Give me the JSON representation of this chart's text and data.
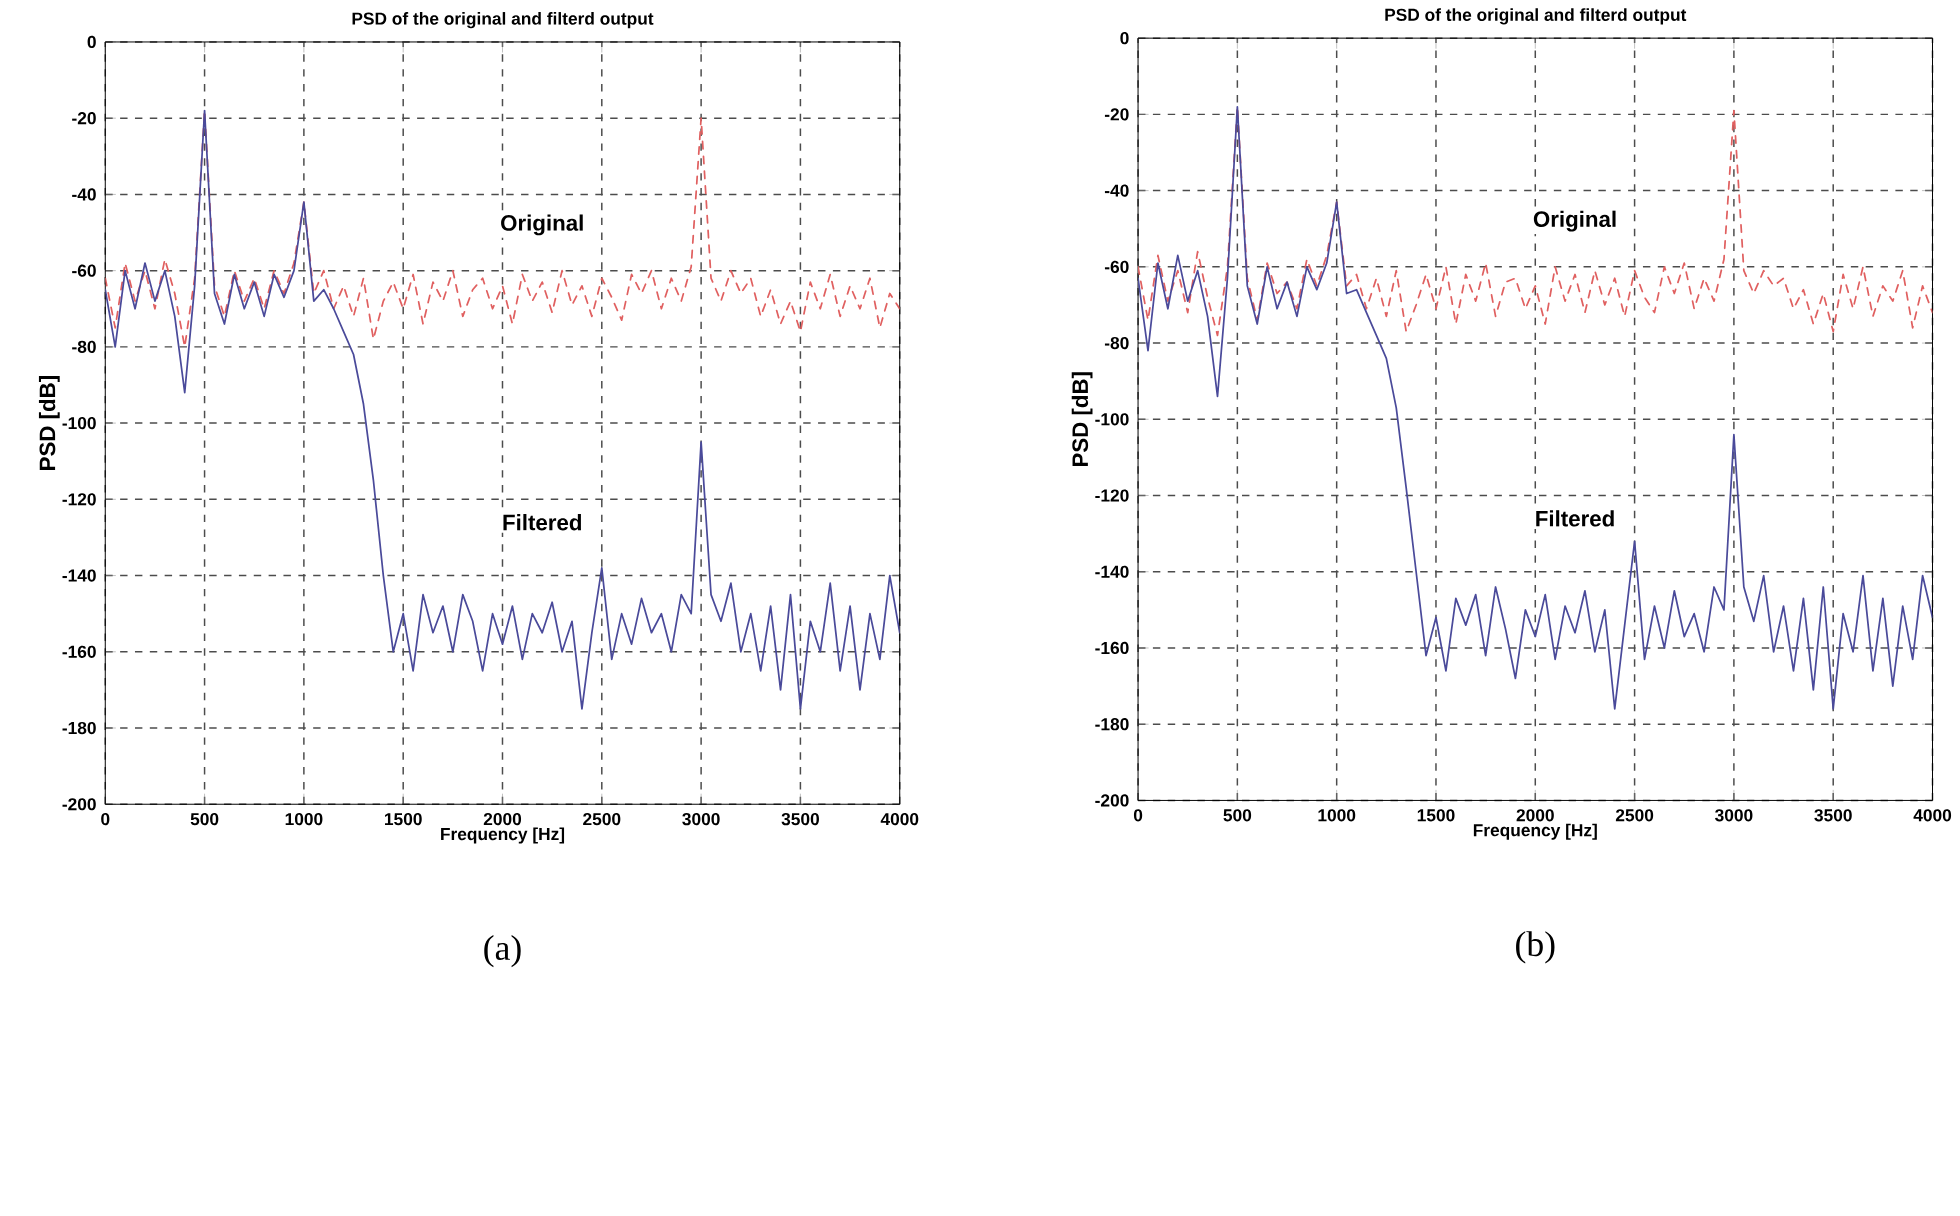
{
  "chart_data": [
    {
      "type": "line",
      "title": "PSD of the original and  filterd output",
      "xlabel": "Frequency [Hz]",
      "ylabel": "PSD [dB]",
      "annotations": [
        "(a)"
      ],
      "grid": true,
      "legend": false,
      "xlim": [
        0,
        4000
      ],
      "ylim": [
        -200,
        0
      ],
      "xticks": [
        0,
        500,
        1000,
        1500,
        2000,
        2500,
        3000,
        3500,
        4000
      ],
      "yticks": [
        0,
        -20,
        -40,
        -60,
        -80,
        -100,
        -120,
        -140,
        -160,
        -180,
        -200
      ],
      "x": [
        0,
        50,
        100,
        150,
        200,
        250,
        300,
        350,
        400,
        450,
        500,
        550,
        600,
        650,
        700,
        750,
        800,
        850,
        900,
        950,
        1000,
        1050,
        1100,
        1150,
        1200,
        1250,
        1300,
        1350,
        1400,
        1450,
        1500,
        1550,
        1600,
        1650,
        1700,
        1750,
        1800,
        1850,
        1900,
        1950,
        2000,
        2050,
        2100,
        2150,
        2200,
        2250,
        2300,
        2350,
        2400,
        2450,
        2500,
        2550,
        2600,
        2650,
        2700,
        2750,
        2800,
        2850,
        2900,
        2950,
        3000,
        3050,
        3100,
        3150,
        3200,
        3250,
        3300,
        3350,
        3400,
        3450,
        3500,
        3550,
        3600,
        3650,
        3700,
        3750,
        3800,
        3850,
        3900,
        3950,
        4000
      ],
      "series": [
        {
          "name": "Original",
          "color": "#e06060",
          "line_style": "dashed",
          "values": [
            -62,
            -75,
            -58,
            -68,
            -60,
            -70,
            -57,
            -66,
            -80,
            -62,
            -18,
            -64,
            -72,
            -60,
            -68,
            -62,
            -70,
            -60,
            -66,
            -58,
            -42,
            -66,
            -60,
            -70,
            -64,
            -72,
            -62,
            -78,
            -68,
            -63,
            -70,
            -61,
            -74,
            -63,
            -68,
            -60,
            -72,
            -65,
            -62,
            -70,
            -64,
            -74,
            -61,
            -68,
            -63,
            -71,
            -60,
            -69,
            -64,
            -72,
            -62,
            -67,
            -73,
            -61,
            -66,
            -60,
            -70,
            -62,
            -68,
            -59,
            -20,
            -62,
            -68,
            -60,
            -66,
            -62,
            -72,
            -65,
            -74,
            -68,
            -76,
            -63,
            -70,
            -61,
            -72,
            -64,
            -70,
            -62,
            -75,
            -66,
            -70
          ]
        },
        {
          "name": "Filtered",
          "color": "#4a4a9a",
          "line_style": "solid",
          "values": [
            -65,
            -80,
            -60,
            -70,
            -58,
            -68,
            -60,
            -72,
            -92,
            -64,
            -18,
            -66,
            -74,
            -61,
            -70,
            -63,
            -72,
            -61,
            -67,
            -60,
            -42,
            -68,
            -65,
            -70,
            -76,
            -82,
            -95,
            -115,
            -140,
            -160,
            -150,
            -165,
            -145,
            -155,
            -148,
            -160,
            -145,
            -152,
            -165,
            -150,
            -158,
            -148,
            -162,
            -150,
            -155,
            -147,
            -160,
            -152,
            -175,
            -155,
            -138,
            -162,
            -150,
            -158,
            -146,
            -155,
            -150,
            -160,
            -145,
            -150,
            -105,
            -145,
            -152,
            -142,
            -160,
            -150,
            -165,
            -148,
            -170,
            -145,
            -175,
            -152,
            -160,
            -142,
            -165,
            -148,
            -170,
            -150,
            -162,
            -140,
            -155
          ]
        }
      ]
    },
    {
      "type": "line",
      "title": "PSD of the original and  filterd output",
      "xlabel": "Frequency [Hz]",
      "ylabel": "PSD [dB]",
      "annotations": [
        "(b)"
      ],
      "grid": true,
      "legend": false,
      "xlim": [
        0,
        4000
      ],
      "ylim": [
        -200,
        0
      ],
      "xticks": [
        0,
        500,
        1000,
        1500,
        2000,
        2500,
        3000,
        3500,
        4000
      ],
      "yticks": [
        0,
        -20,
        -40,
        -60,
        -80,
        -100,
        -120,
        -140,
        -160,
        -180,
        -200
      ],
      "x": [
        0,
        50,
        100,
        150,
        200,
        250,
        300,
        350,
        400,
        450,
        500,
        550,
        600,
        650,
        700,
        750,
        800,
        850,
        900,
        950,
        1000,
        1050,
        1100,
        1150,
        1200,
        1250,
        1300,
        1350,
        1400,
        1450,
        1500,
        1550,
        1600,
        1650,
        1700,
        1750,
        1800,
        1850,
        1900,
        1950,
        2000,
        2050,
        2100,
        2150,
        2200,
        2250,
        2300,
        2350,
        2400,
        2450,
        2500,
        2550,
        2600,
        2650,
        2700,
        2750,
        2800,
        2850,
        2900,
        2950,
        3000,
        3050,
        3100,
        3150,
        3200,
        3250,
        3300,
        3350,
        3400,
        3450,
        3500,
        3550,
        3600,
        3650,
        3700,
        3750,
        3800,
        3850,
        3900,
        3950,
        4000
      ],
      "series": [
        {
          "name": "Original",
          "color": "#e06060",
          "line_style": "dashed",
          "values": [
            -60,
            -74,
            -57,
            -69,
            -61,
            -72,
            -56,
            -68,
            -78,
            -60,
            -18,
            -63,
            -74,
            -59,
            -67,
            -64,
            -71,
            -58,
            -65,
            -57,
            -43,
            -65,
            -62,
            -71,
            -63,
            -73,
            -61,
            -77,
            -70,
            -62,
            -71,
            -60,
            -75,
            -62,
            -69,
            -59,
            -73,
            -64,
            -63,
            -71,
            -65,
            -75,
            -60,
            -69,
            -62,
            -72,
            -61,
            -70,
            -63,
            -73,
            -61,
            -68,
            -72,
            -60,
            -67,
            -59,
            -71,
            -63,
            -69,
            -58,
            -19,
            -61,
            -67,
            -61,
            -65,
            -63,
            -71,
            -66,
            -75,
            -67,
            -77,
            -62,
            -71,
            -60,
            -73,
            -65,
            -69,
            -61,
            -76,
            -65,
            -72
          ]
        },
        {
          "name": "Filtered",
          "color": "#4a4a9a",
          "line_style": "solid",
          "values": [
            -63,
            -82,
            -59,
            -71,
            -57,
            -69,
            -61,
            -73,
            -94,
            -63,
            -18,
            -65,
            -75,
            -60,
            -71,
            -64,
            -73,
            -60,
            -66,
            -59,
            -43,
            -67,
            -66,
            -72,
            -78,
            -84,
            -97,
            -118,
            -140,
            -162,
            -152,
            -166,
            -147,
            -154,
            -146,
            -162,
            -144,
            -155,
            -168,
            -150,
            -157,
            -146,
            -163,
            -149,
            -156,
            -145,
            -161,
            -150,
            -176,
            -154,
            -132,
            -163,
            -149,
            -160,
            -145,
            -157,
            -151,
            -161,
            -144,
            -150,
            -104,
            -144,
            -153,
            -141,
            -161,
            -149,
            -166,
            -147,
            -171,
            -144,
            -176,
            -151,
            -161,
            -141,
            -166,
            -147,
            -170,
            -149,
            -163,
            -141,
            -152
          ]
        }
      ]
    }
  ]
}
